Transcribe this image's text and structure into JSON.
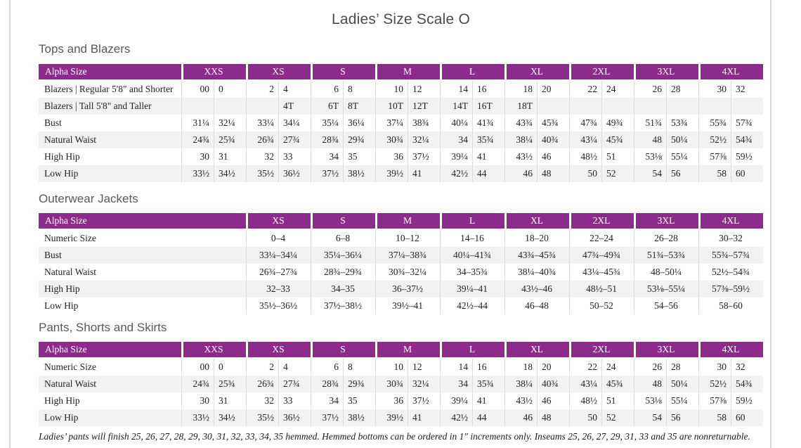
{
  "page": {
    "title": "Ladies’ Size Scale O",
    "footnote": "Ladies’ pants will finish 25, 26, 27, 28, 29, 30, 31, 32, 33, 34, 35 hemmed. Hemmed bottoms can be ordered in 1″ increments only. Inseams 25, 26, 27, 29, 31, 33 and 35 are nonreturnable."
  },
  "colors": {
    "header_purple": "#8C2B8C",
    "row_stripe": "#F2F2F2",
    "heading_gray": "#595959",
    "grid_line": "#DCDCDC"
  },
  "tables": {
    "tops": {
      "heading": "Tops and Blazers",
      "label_header": "Alpha Size",
      "columns_per_size": 2,
      "sizes": [
        "XXS",
        "XS",
        "S",
        "M",
        "L",
        "XL",
        "2XL",
        "3XL",
        "4XL"
      ],
      "rows": [
        {
          "label": "Blazers | Regular 5'8\" and Shorter",
          "values": [
            "00",
            "0",
            "2",
            "4",
            "6",
            "8",
            "10",
            "12",
            "14",
            "16",
            "18",
            "20",
            "22",
            "24",
            "26",
            "28",
            "30",
            "32"
          ]
        },
        {
          "label": "Blazers | Tall 5'8\" and Taller",
          "values": [
            "",
            "",
            "",
            "4T",
            "6T",
            "8T",
            "10T",
            "12T",
            "14T",
            "16T",
            "18T",
            "",
            "",
            "",
            "",
            "",
            "",
            ""
          ]
        },
        {
          "label": "Bust",
          "values": [
            "31¼",
            "32¼",
            "33¼",
            "34¼",
            "35¼",
            "36¼",
            "37¼",
            "38¾",
            "40¼",
            "41¾",
            "43¾",
            "45¾",
            "47¾",
            "49¾",
            "51¾",
            "53¾",
            "55¾",
            "57¾"
          ]
        },
        {
          "label": "Natural Waist",
          "values": [
            "24¾",
            "25¾",
            "26¾",
            "27¾",
            "28¾",
            "29¾",
            "30¾",
            "32¼",
            "34",
            "35¾",
            "38¼",
            "40¾",
            "43¼",
            "45¾",
            "48",
            "50¼",
            "52½",
            "54¾"
          ]
        },
        {
          "label": "High Hip",
          "values": [
            "30",
            "31",
            "32",
            "33",
            "34",
            "35",
            "36",
            "37½",
            "39¼",
            "41",
            "43½",
            "46",
            "48½",
            "51",
            "53⅛",
            "55¼",
            "57⅜",
            "59½"
          ]
        },
        {
          "label": "Low Hip",
          "values": [
            "33½",
            "34½",
            "35½",
            "36½",
            "37½",
            "38½",
            "39½",
            "41",
            "42½",
            "44",
            "46",
            "48",
            "50",
            "52",
            "54",
            "56",
            "58",
            "60"
          ]
        }
      ]
    },
    "outerwear": {
      "heading": "Outerwear Jackets",
      "label_header": "Alpha Size",
      "columns_per_size": 1,
      "sizes": [
        "XS",
        "S",
        "M",
        "L",
        "XL",
        "2XL",
        "3XL",
        "4XL"
      ],
      "rows": [
        {
          "label": "Numeric Size",
          "values": [
            "0–4",
            "6–8",
            "10–12",
            "14–16",
            "18–20",
            "22–24",
            "26–28",
            "30–32"
          ]
        },
        {
          "label": "Bust",
          "values": [
            "33¼–34¼",
            "35¼–36¼",
            "37¼–38¾",
            "40¼–41¾",
            "43¾–45¾",
            "47¾–49¾",
            "51¾–53¾",
            "55¾–57¾"
          ]
        },
        {
          "label": "Natural Waist",
          "values": [
            "26¾–27¾",
            "28¾–29¾",
            "30¾–32¼",
            "34–35¾",
            "38¼–40¾",
            "43¼–45¾",
            "48–50¼",
            "52½–54¾"
          ]
        },
        {
          "label": "High Hip",
          "values": [
            "32–33",
            "34–35",
            "36–37½",
            "39¼–41",
            "43½–46",
            "48½–51",
            "53⅛–55¼",
            "57⅜–59½"
          ]
        },
        {
          "label": "Low Hip",
          "values": [
            "35½–36½",
            "37½–38½",
            "39½–41",
            "42½–44",
            "46–48",
            "50–52",
            "54–56",
            "58–60"
          ]
        }
      ]
    },
    "pants": {
      "heading": "Pants, Shorts and Skirts",
      "label_header": "Alpha Size",
      "columns_per_size": 2,
      "sizes": [
        "XXS",
        "XS",
        "S",
        "M",
        "L",
        "XL",
        "2XL",
        "3XL",
        "4XL"
      ],
      "rows": [
        {
          "label": "Numeric Size",
          "values": [
            "00",
            "0",
            "2",
            "4",
            "6",
            "8",
            "10",
            "12",
            "14",
            "16",
            "18",
            "20",
            "22",
            "24",
            "26",
            "28",
            "30",
            "32"
          ]
        },
        {
          "label": "Natural Waist",
          "values": [
            "24¾",
            "25¾",
            "26¾",
            "27¾",
            "28¾",
            "29¾",
            "30¾",
            "32¼",
            "34",
            "35¾",
            "38¼",
            "40¾",
            "43¼",
            "45¾",
            "48",
            "50¼",
            "52½",
            "54¾"
          ]
        },
        {
          "label": "High Hip",
          "values": [
            "30",
            "31",
            "32",
            "33",
            "34",
            "35",
            "36",
            "37½",
            "39¼",
            "41",
            "43½",
            "46",
            "48½",
            "51",
            "53⅛",
            "55¼",
            "57⅜",
            "59½"
          ]
        },
        {
          "label": "Low Hip",
          "values": [
            "33½",
            "34½",
            "35½",
            "36½",
            "37½",
            "38½",
            "39½",
            "41",
            "42½",
            "44",
            "46",
            "48",
            "50",
            "52",
            "54",
            "56",
            "58",
            "60"
          ]
        }
      ]
    }
  }
}
